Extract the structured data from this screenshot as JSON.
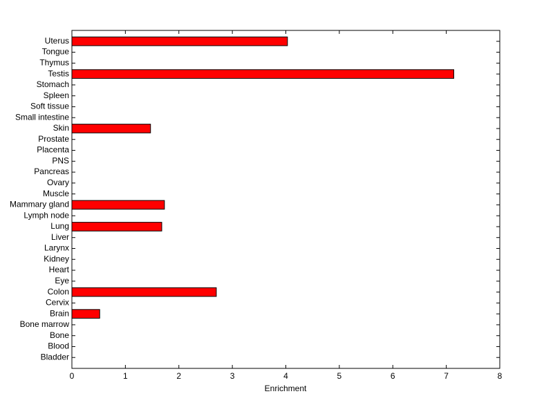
{
  "chart_data": {
    "type": "barh",
    "xlabel": "Enrichment",
    "categories": [
      "Uterus",
      "Tongue",
      "Thymus",
      "Testis",
      "Stomach",
      "Spleen",
      "Soft tissue",
      "Small intestine",
      "Skin",
      "Prostate",
      "Placenta",
      "PNS",
      "Pancreas",
      "Ovary",
      "Muscle",
      "Mammary gland",
      "Lymph node",
      "Lung",
      "Liver",
      "Larynx",
      "Kidney",
      "Heart",
      "Eye",
      "Colon",
      "Cervix",
      "Brain",
      "Bone marrow",
      "Bone",
      "Blood",
      "Bladder"
    ],
    "values": [
      4.03,
      0,
      0,
      7.14,
      0,
      0,
      0,
      0,
      1.47,
      0,
      0,
      0,
      0,
      0,
      0,
      1.73,
      0,
      1.68,
      0,
      0,
      0,
      0,
      0,
      2.7,
      0,
      0.52,
      0,
      0,
      0,
      0
    ],
    "color": "#ff0000",
    "xlim": [
      0,
      8
    ],
    "xticks": [
      0,
      1,
      2,
      3,
      4,
      5,
      6,
      7,
      8
    ],
    "grid": false
  }
}
